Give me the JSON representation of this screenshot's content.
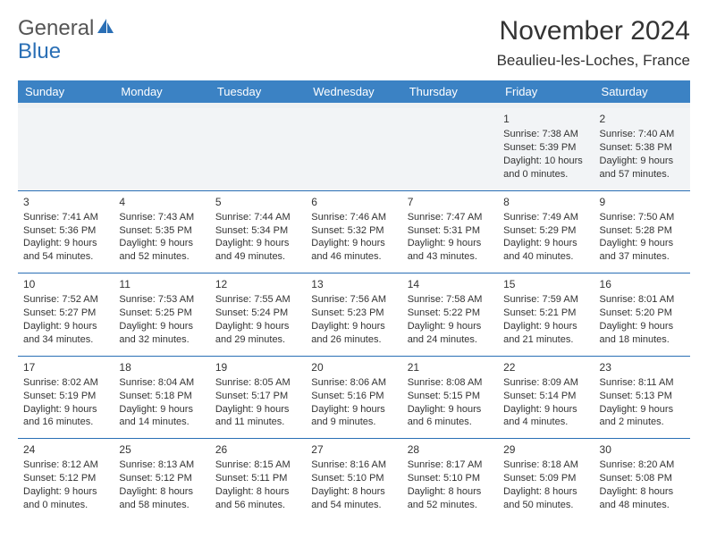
{
  "brand": {
    "part1": "General",
    "part2": "Blue",
    "color1": "#555555",
    "color2": "#2a6fb5",
    "sail_color": "#2a6fb5"
  },
  "header": {
    "title": "November 2024",
    "location": "Beaulieu-les-Loches, France"
  },
  "style": {
    "header_bg": "#3b82c4",
    "header_fg": "#ffffff",
    "rule_color": "#2a6fb5",
    "spacer_bg": "#eef1f3",
    "text_color": "#333333",
    "cell_fontsize": 11,
    "daynum_fontsize": 12
  },
  "day_headers": [
    "Sunday",
    "Monday",
    "Tuesday",
    "Wednesday",
    "Thursday",
    "Friday",
    "Saturday"
  ],
  "weeks": [
    [
      null,
      null,
      null,
      null,
      null,
      {
        "n": "1",
        "sr": "7:38 AM",
        "ss": "5:39 PM",
        "dl": "10 hours and 0 minutes."
      },
      {
        "n": "2",
        "sr": "7:40 AM",
        "ss": "5:38 PM",
        "dl": "9 hours and 57 minutes."
      }
    ],
    [
      {
        "n": "3",
        "sr": "7:41 AM",
        "ss": "5:36 PM",
        "dl": "9 hours and 54 minutes."
      },
      {
        "n": "4",
        "sr": "7:43 AM",
        "ss": "5:35 PM",
        "dl": "9 hours and 52 minutes."
      },
      {
        "n": "5",
        "sr": "7:44 AM",
        "ss": "5:34 PM",
        "dl": "9 hours and 49 minutes."
      },
      {
        "n": "6",
        "sr": "7:46 AM",
        "ss": "5:32 PM",
        "dl": "9 hours and 46 minutes."
      },
      {
        "n": "7",
        "sr": "7:47 AM",
        "ss": "5:31 PM",
        "dl": "9 hours and 43 minutes."
      },
      {
        "n": "8",
        "sr": "7:49 AM",
        "ss": "5:29 PM",
        "dl": "9 hours and 40 minutes."
      },
      {
        "n": "9",
        "sr": "7:50 AM",
        "ss": "5:28 PM",
        "dl": "9 hours and 37 minutes."
      }
    ],
    [
      {
        "n": "10",
        "sr": "7:52 AM",
        "ss": "5:27 PM",
        "dl": "9 hours and 34 minutes."
      },
      {
        "n": "11",
        "sr": "7:53 AM",
        "ss": "5:25 PM",
        "dl": "9 hours and 32 minutes."
      },
      {
        "n": "12",
        "sr": "7:55 AM",
        "ss": "5:24 PM",
        "dl": "9 hours and 29 minutes."
      },
      {
        "n": "13",
        "sr": "7:56 AM",
        "ss": "5:23 PM",
        "dl": "9 hours and 26 minutes."
      },
      {
        "n": "14",
        "sr": "7:58 AM",
        "ss": "5:22 PM",
        "dl": "9 hours and 24 minutes."
      },
      {
        "n": "15",
        "sr": "7:59 AM",
        "ss": "5:21 PM",
        "dl": "9 hours and 21 minutes."
      },
      {
        "n": "16",
        "sr": "8:01 AM",
        "ss": "5:20 PM",
        "dl": "9 hours and 18 minutes."
      }
    ],
    [
      {
        "n": "17",
        "sr": "8:02 AM",
        "ss": "5:19 PM",
        "dl": "9 hours and 16 minutes."
      },
      {
        "n": "18",
        "sr": "8:04 AM",
        "ss": "5:18 PM",
        "dl": "9 hours and 14 minutes."
      },
      {
        "n": "19",
        "sr": "8:05 AM",
        "ss": "5:17 PM",
        "dl": "9 hours and 11 minutes."
      },
      {
        "n": "20",
        "sr": "8:06 AM",
        "ss": "5:16 PM",
        "dl": "9 hours and 9 minutes."
      },
      {
        "n": "21",
        "sr": "8:08 AM",
        "ss": "5:15 PM",
        "dl": "9 hours and 6 minutes."
      },
      {
        "n": "22",
        "sr": "8:09 AM",
        "ss": "5:14 PM",
        "dl": "9 hours and 4 minutes."
      },
      {
        "n": "23",
        "sr": "8:11 AM",
        "ss": "5:13 PM",
        "dl": "9 hours and 2 minutes."
      }
    ],
    [
      {
        "n": "24",
        "sr": "8:12 AM",
        "ss": "5:12 PM",
        "dl": "9 hours and 0 minutes."
      },
      {
        "n": "25",
        "sr": "8:13 AM",
        "ss": "5:12 PM",
        "dl": "8 hours and 58 minutes."
      },
      {
        "n": "26",
        "sr": "8:15 AM",
        "ss": "5:11 PM",
        "dl": "8 hours and 56 minutes."
      },
      {
        "n": "27",
        "sr": "8:16 AM",
        "ss": "5:10 PM",
        "dl": "8 hours and 54 minutes."
      },
      {
        "n": "28",
        "sr": "8:17 AM",
        "ss": "5:10 PM",
        "dl": "8 hours and 52 minutes."
      },
      {
        "n": "29",
        "sr": "8:18 AM",
        "ss": "5:09 PM",
        "dl": "8 hours and 50 minutes."
      },
      {
        "n": "30",
        "sr": "8:20 AM",
        "ss": "5:08 PM",
        "dl": "8 hours and 48 minutes."
      }
    ]
  ],
  "labels": {
    "sunrise": "Sunrise: ",
    "sunset": "Sunset: ",
    "daylight": "Daylight: "
  }
}
